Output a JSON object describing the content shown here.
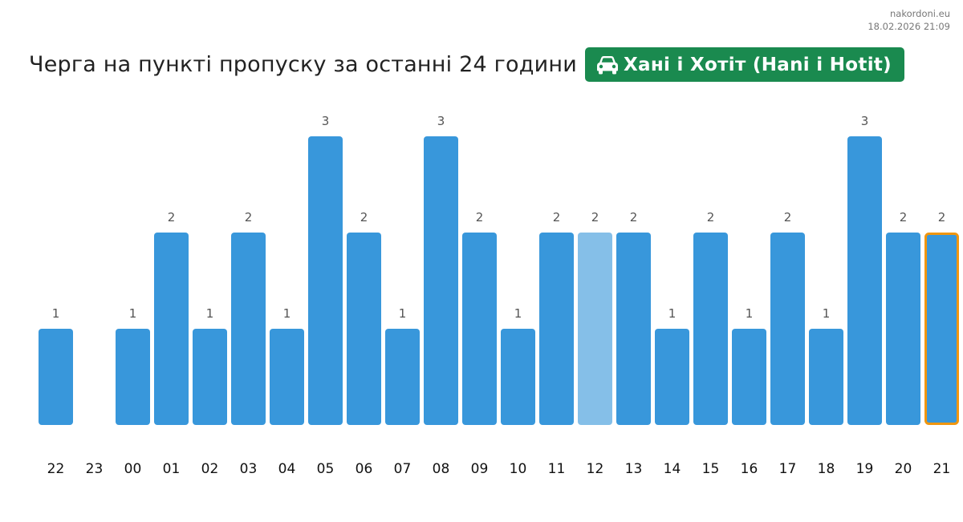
{
  "site": {
    "domain": "nakordoni.eu",
    "timestamp": "18.02.2026 21:09"
  },
  "header": {
    "title": "Черга на пункті пропуску за останні 24 години",
    "checkpoint_name": "Хані і Хотіт (Hani i Hotit)",
    "checkpoint_icon": "car-icon",
    "badge_color": "#1a8a4f"
  },
  "chart_data": {
    "type": "bar",
    "categories": [
      "22",
      "23",
      "00",
      "01",
      "02",
      "03",
      "04",
      "05",
      "06",
      "07",
      "08",
      "09",
      "10",
      "11",
      "12",
      "13",
      "14",
      "15",
      "16",
      "17",
      "18",
      "19",
      "20",
      "21"
    ],
    "values": [
      1,
      0,
      1,
      2,
      1,
      2,
      1,
      3,
      2,
      1,
      3,
      2,
      1,
      2,
      2,
      2,
      1,
      2,
      1,
      2,
      1,
      3,
      2,
      2
    ],
    "title": "Черга на пункті пропуску за останні 24 години",
    "xlabel": "",
    "ylabel": "",
    "ylim": [
      0,
      3
    ],
    "grid": false,
    "highlighted_category": "12",
    "current_category": "21",
    "colors": {
      "bar": "#3897db",
      "highlighted_bar": "#85bfe8",
      "current_outline": "#f0960f"
    }
  }
}
